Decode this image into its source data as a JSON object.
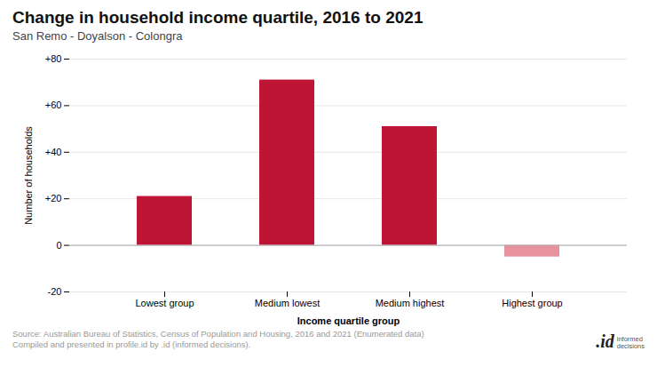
{
  "chart_data": {
    "type": "bar",
    "title": "Change in household income quartile, 2016 to 2021",
    "subtitle": "San Remo - Doyalson - Colongra",
    "categories": [
      "Lowest group",
      "Medium lowest",
      "Medium highest",
      "Highest group"
    ],
    "values": [
      21,
      71,
      51,
      -5
    ],
    "colors": [
      "#be1535",
      "#be1535",
      "#be1535",
      "#e8929e"
    ],
    "xlabel": "Income quartile group",
    "ylabel": "Number of households",
    "ylim": [
      -20,
      80
    ],
    "yticks": [
      -20,
      0,
      {
        "value": 20,
        "label": "+20"
      },
      {
        "value": 40,
        "label": "+40"
      },
      {
        "value": 60,
        "label": "+60"
      },
      {
        "value": 80,
        "label": "+80"
      }
    ],
    "grid": true,
    "source": [
      "Source: Australian Bureau of Statistics, Census of Population and Housing, 2016 and 2021 (Enumerated data)",
      "Compiled and presented in profile.id by .id (informed decisions)."
    ],
    "annotations": [
      ".id",
      "informed\ndecisions"
    ]
  }
}
